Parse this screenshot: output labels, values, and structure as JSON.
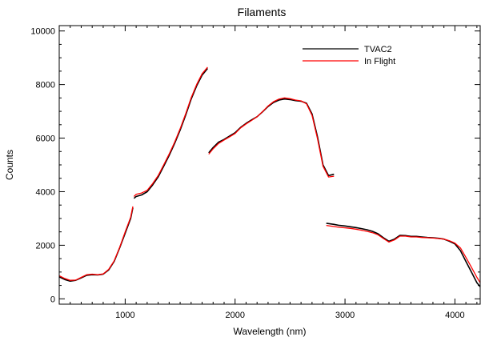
{
  "chart_data": {
    "type": "line",
    "title": "Filaments",
    "xlabel": "Wavelength (nm)",
    "ylabel": "Counts",
    "xlim": [
      400,
      4230
    ],
    "ylim": [
      -200,
      10200
    ],
    "x_ticks": [
      1000,
      2000,
      3000,
      4000
    ],
    "y_ticks": [
      0,
      2000,
      4000,
      6000,
      8000,
      10000
    ],
    "grid": false,
    "legend_position": "top-right",
    "series": [
      {
        "name": "TVAC2",
        "color": "#000000",
        "segments": [
          [
            [
              400,
              820
            ],
            [
              450,
              720
            ],
            [
              500,
              660
            ],
            [
              550,
              690
            ],
            [
              600,
              780
            ],
            [
              650,
              880
            ],
            [
              700,
              900
            ],
            [
              750,
              890
            ],
            [
              800,
              920
            ],
            [
              850,
              1080
            ],
            [
              900,
              1400
            ],
            [
              950,
              1900
            ],
            [
              1000,
              2450
            ],
            [
              1050,
              3000
            ],
            [
              1070,
              3400
            ]
          ],
          [
            [
              1080,
              3750
            ],
            [
              1100,
              3820
            ],
            [
              1150,
              3880
            ],
            [
              1200,
              4000
            ],
            [
              1250,
              4250
            ],
            [
              1300,
              4550
            ],
            [
              1350,
              4950
            ],
            [
              1400,
              5350
            ],
            [
              1450,
              5800
            ],
            [
              1500,
              6300
            ],
            [
              1550,
              6850
            ],
            [
              1600,
              7450
            ],
            [
              1650,
              7950
            ],
            [
              1700,
              8350
            ],
            [
              1750,
              8600
            ]
          ],
          [
            [
              1760,
              5450
            ],
            [
              1800,
              5650
            ],
            [
              1850,
              5850
            ],
            [
              1900,
              5950
            ],
            [
              1950,
              6080
            ],
            [
              2000,
              6200
            ],
            [
              2050,
              6400
            ],
            [
              2100,
              6550
            ],
            [
              2150,
              6680
            ],
            [
              2200,
              6800
            ],
            [
              2250,
              6980
            ],
            [
              2300,
              7180
            ],
            [
              2350,
              7330
            ],
            [
              2400,
              7420
            ],
            [
              2450,
              7460
            ],
            [
              2500,
              7440
            ],
            [
              2550,
              7400
            ],
            [
              2600,
              7380
            ],
            [
              2650,
              7300
            ],
            [
              2700,
              6900
            ],
            [
              2750,
              6050
            ],
            [
              2800,
              5000
            ],
            [
              2850,
              4600
            ],
            [
              2900,
              4650
            ]
          ],
          [
            [
              2830,
              2820
            ],
            [
              2900,
              2780
            ],
            [
              2950,
              2740
            ],
            [
              3000,
              2720
            ],
            [
              3050,
              2690
            ],
            [
              3100,
              2660
            ],
            [
              3150,
              2620
            ],
            [
              3200,
              2580
            ],
            [
              3250,
              2520
            ],
            [
              3300,
              2430
            ],
            [
              3350,
              2280
            ],
            [
              3400,
              2150
            ],
            [
              3450,
              2230
            ],
            [
              3500,
              2370
            ],
            [
              3550,
              2360
            ],
            [
              3600,
              2330
            ],
            [
              3650,
              2330
            ],
            [
              3700,
              2310
            ],
            [
              3750,
              2290
            ],
            [
              3800,
              2280
            ],
            [
              3850,
              2260
            ],
            [
              3900,
              2230
            ],
            [
              3950,
              2150
            ],
            [
              4000,
              2050
            ],
            [
              4050,
              1800
            ],
            [
              4100,
              1400
            ],
            [
              4150,
              1000
            ],
            [
              4200,
              600
            ],
            [
              4230,
              450
            ]
          ]
        ]
      },
      {
        "name": "In Flight",
        "color": "#ff0000",
        "segments": [
          [
            [
              400,
              860
            ],
            [
              450,
              760
            ],
            [
              500,
              690
            ],
            [
              550,
              700
            ],
            [
              600,
              800
            ],
            [
              650,
              900
            ],
            [
              700,
              920
            ],
            [
              750,
              900
            ],
            [
              800,
              930
            ],
            [
              850,
              1100
            ],
            [
              900,
              1420
            ],
            [
              950,
              1920
            ],
            [
              1000,
              2500
            ],
            [
              1050,
              3050
            ],
            [
              1070,
              3450
            ]
          ],
          [
            [
              1080,
              3820
            ],
            [
              1100,
              3900
            ],
            [
              1150,
              3950
            ],
            [
              1200,
              4050
            ],
            [
              1250,
              4300
            ],
            [
              1300,
              4600
            ],
            [
              1350,
              5000
            ],
            [
              1400,
              5400
            ],
            [
              1450,
              5850
            ],
            [
              1500,
              6350
            ],
            [
              1550,
              6900
            ],
            [
              1600,
              7500
            ],
            [
              1650,
              8000
            ],
            [
              1700,
              8400
            ],
            [
              1750,
              8650
            ]
          ],
          [
            [
              1760,
              5400
            ],
            [
              1800,
              5600
            ],
            [
              1850,
              5800
            ],
            [
              1900,
              5930
            ],
            [
              1950,
              6050
            ],
            [
              2000,
              6170
            ],
            [
              2050,
              6380
            ],
            [
              2100,
              6530
            ],
            [
              2150,
              6660
            ],
            [
              2200,
              6800
            ],
            [
              2250,
              6990
            ],
            [
              2300,
              7200
            ],
            [
              2350,
              7360
            ],
            [
              2400,
              7460
            ],
            [
              2450,
              7500
            ],
            [
              2500,
              7470
            ],
            [
              2550,
              7420
            ],
            [
              2600,
              7390
            ],
            [
              2650,
              7280
            ],
            [
              2700,
              6850
            ],
            [
              2750,
              5980
            ],
            [
              2800,
              4950
            ],
            [
              2850,
              4550
            ],
            [
              2900,
              4580
            ]
          ],
          [
            [
              2830,
              2740
            ],
            [
              2900,
              2700
            ],
            [
              2950,
              2670
            ],
            [
              3000,
              2650
            ],
            [
              3050,
              2630
            ],
            [
              3100,
              2600
            ],
            [
              3150,
              2560
            ],
            [
              3200,
              2520
            ],
            [
              3250,
              2470
            ],
            [
              3300,
              2390
            ],
            [
              3350,
              2250
            ],
            [
              3400,
              2120
            ],
            [
              3450,
              2200
            ],
            [
              3500,
              2340
            ],
            [
              3550,
              2340
            ],
            [
              3600,
              2310
            ],
            [
              3650,
              2310
            ],
            [
              3700,
              2290
            ],
            [
              3750,
              2280
            ],
            [
              3800,
              2270
            ],
            [
              3850,
              2250
            ],
            [
              3900,
              2230
            ],
            [
              3950,
              2170
            ],
            [
              4000,
              2080
            ],
            [
              4050,
              1900
            ],
            [
              4100,
              1550
            ],
            [
              4150,
              1180
            ],
            [
              4200,
              800
            ],
            [
              4230,
              600
            ]
          ]
        ]
      }
    ]
  }
}
